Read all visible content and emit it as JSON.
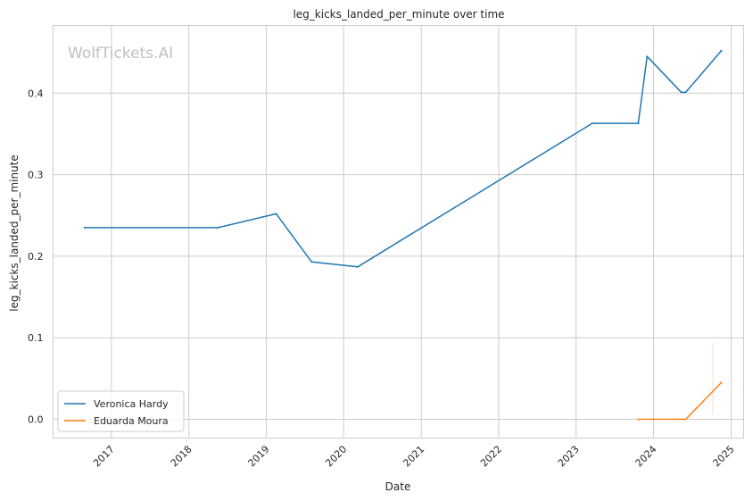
{
  "chart_data": {
    "type": "line",
    "title": "leg_kicks_landed_per_minute over time",
    "xlabel": "Date",
    "ylabel": "leg_kicks_landed_per_minute",
    "watermark": "WolfTickets.AI",
    "xlim": [
      "2016-04-01",
      "2025-03-01"
    ],
    "ylim": [
      -0.023,
      0.483
    ],
    "x_ticks": [
      "2017",
      "2018",
      "2019",
      "2020",
      "2021",
      "2022",
      "2023",
      "2024",
      "2025"
    ],
    "y_ticks": [
      "0.0",
      "0.1",
      "0.2",
      "0.3",
      "0.4"
    ],
    "grid": true,
    "legend_position": "lower-left",
    "series": [
      {
        "name": "Veronica Hardy",
        "color": "#1f77b4",
        "x": [
          "2016-08-27",
          "2018-05-19",
          "2019-02-17",
          "2019-08-03",
          "2020-03-07",
          "2023-03-18",
          "2023-10-21",
          "2023-12-02",
          "2024-05-11",
          "2024-06-01",
          "2024-11-16"
        ],
        "y": [
          0.235,
          0.235,
          0.252,
          0.193,
          0.187,
          0.363,
          0.363,
          0.445,
          0.401,
          0.401,
          0.452
        ]
      },
      {
        "name": "Eduarda Moura",
        "color": "#ff7f0e",
        "x": [
          "2023-10-21",
          "2024-06-01",
          "2024-11-16"
        ],
        "y": [
          0.0,
          0.0,
          0.045
        ]
      }
    ]
  }
}
